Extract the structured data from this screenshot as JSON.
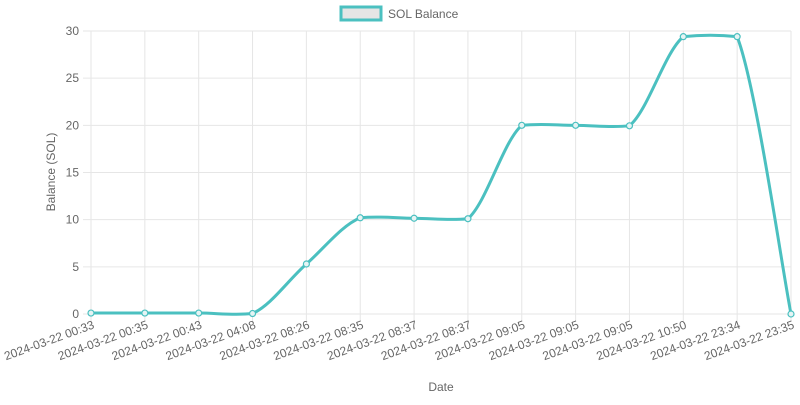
{
  "chart_data": {
    "type": "line",
    "title": "",
    "xlabel": "Date",
    "ylabel": "Balance (SOL)",
    "ylim": [
      0,
      30
    ],
    "yticks": [
      0,
      5,
      10,
      15,
      20,
      25,
      30
    ],
    "grid": true,
    "legend_position": "top-center",
    "categories": [
      "2024-03-22 00:33",
      "2024-03-22 00:35",
      "2024-03-22 00:43",
      "2024-03-22 04:08",
      "2024-03-22 08:26",
      "2024-03-22 08:35",
      "2024-03-22 08:37",
      "2024-03-22 08:37",
      "2024-03-22 09:05",
      "2024-03-22 09:05",
      "2024-03-22 09:05",
      "2024-03-22 10:50",
      "2024-03-22 23:34",
      "2024-03-22 23:35"
    ],
    "series": [
      {
        "name": "SOL Balance",
        "color": "#4bc0c0",
        "fill": "#e5e5e5",
        "values": [
          0.1,
          0.1,
          0.1,
          0.05,
          5.3,
          10.2,
          10.15,
          10.1,
          20.0,
          20.0,
          19.95,
          29.4,
          29.4,
          0.0
        ]
      }
    ]
  }
}
